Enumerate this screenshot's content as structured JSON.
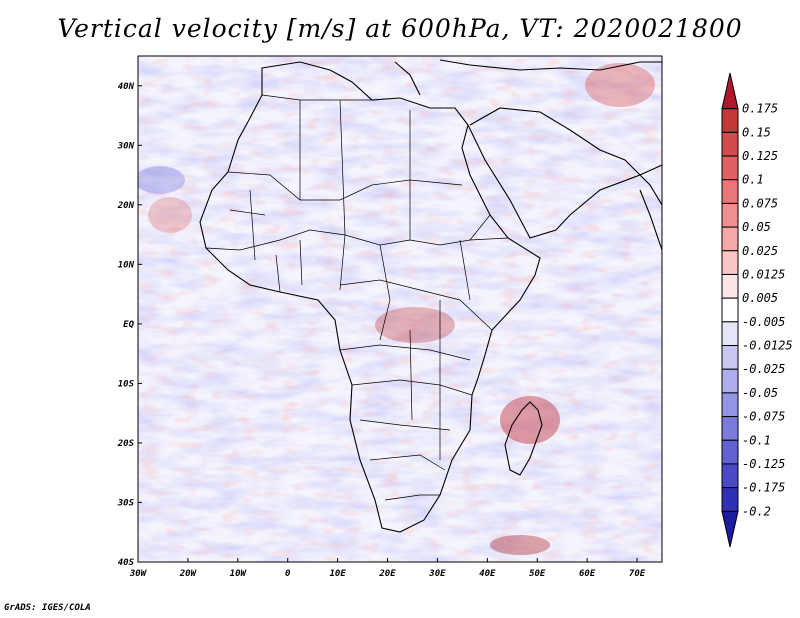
{
  "title": "Vertical velocity [m/s] at 600hPa, VT: 2020021800",
  "footer": "GrADS: IGES/COLA",
  "map": {
    "region": "Africa",
    "lon_range": [
      -30,
      75
    ],
    "lat_range": [
      -40,
      45
    ],
    "lat_ticks": [
      "40N",
      "30N",
      "20N",
      "10N",
      "EQ",
      "10S",
      "20S",
      "30S",
      "40S"
    ],
    "lon_ticks": [
      "30W",
      "20W",
      "10W",
      "0",
      "10E",
      "20E",
      "30E",
      "40E",
      "50E",
      "60E",
      "70E"
    ]
  },
  "colorbar": {
    "labels": [
      "0.175",
      "0.15",
      "0.125",
      "0.1",
      "0.075",
      "0.05",
      "0.025",
      "0.0125",
      "0.005",
      "-0.005",
      "-0.0125",
      "-0.025",
      "-0.05",
      "-0.075",
      "-0.1",
      "-0.125",
      "-0.175",
      "-0.2"
    ],
    "colors": [
      "#b2182b",
      "#c43838",
      "#d24c4c",
      "#de6262",
      "#e87878",
      "#ef8f8f",
      "#f4a8a8",
      "#f9c6c6",
      "#fde6e6",
      "#ffffff",
      "#e6e6fa",
      "#c8c8f2",
      "#aeaeec",
      "#9494e4",
      "#7b7bdc",
      "#6262d2",
      "#4a4ac6",
      "#3030b4",
      "#1c1ca0"
    ]
  }
}
